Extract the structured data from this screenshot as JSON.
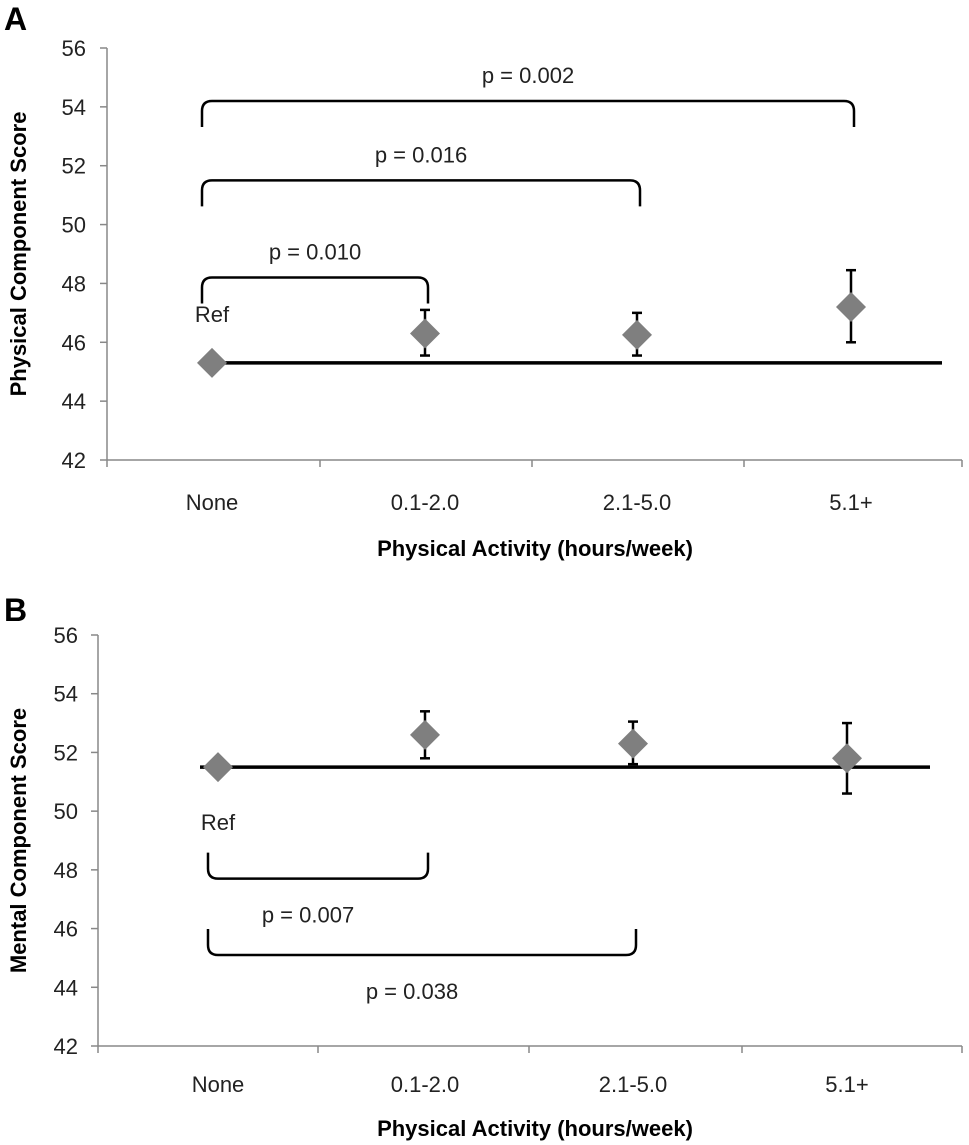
{
  "chart_data": [
    {
      "type": "scatter",
      "panel_label": "A",
      "categories": [
        "None",
        "0.1-2.0",
        "2.1-5.0",
        "5.1+"
      ],
      "series": [
        {
          "values": [
            45.3,
            46.3,
            46.25,
            47.2
          ],
          "error_low": [
            null,
            45.55,
            45.55,
            46.0
          ],
          "error_high": [
            null,
            47.1,
            47.0,
            48.45
          ]
        }
      ],
      "reference_line": 45.3,
      "ref_label": "Ref",
      "xlabel": "Physical Activity (hours/week)",
      "ylabel": "Physical Component Score",
      "ylim": [
        42,
        56
      ],
      "yticks": [
        42,
        44,
        46,
        48,
        50,
        52,
        54,
        56
      ],
      "grid": false,
      "marker_color": "#7f7f7f",
      "annotations": [
        {
          "text": "p = 0.010",
          "from": "None",
          "to": "0.1-2.0",
          "level": 48.2,
          "orientation": "above"
        },
        {
          "text": "p = 0.016",
          "from": "None",
          "to": "2.1-5.0",
          "level": 51.5,
          "orientation": "above"
        },
        {
          "text": "p = 0.002",
          "from": "None",
          "to": "5.1+",
          "level": 54.2,
          "orientation": "above"
        }
      ]
    },
    {
      "type": "scatter",
      "panel_label": "B",
      "categories": [
        "None",
        "0.1-2.0",
        "2.1-5.0",
        "5.1+"
      ],
      "series": [
        {
          "values": [
            51.5,
            52.6,
            52.3,
            51.8
          ],
          "error_low": [
            null,
            51.8,
            51.6,
            50.6
          ],
          "error_high": [
            null,
            53.4,
            53.05,
            53.0
          ]
        }
      ],
      "reference_line": 51.5,
      "ref_label": "Ref",
      "xlabel": "Physical Activity (hours/week)",
      "ylabel": "Mental Component Score",
      "ylim": [
        42,
        56
      ],
      "yticks": [
        42,
        44,
        46,
        48,
        50,
        52,
        54,
        56
      ],
      "grid": false,
      "marker_color": "#7f7f7f",
      "annotations": [
        {
          "text": "p = 0.007",
          "from": "None",
          "to": "0.1-2.0",
          "level": 47.7,
          "orientation": "below"
        },
        {
          "text": "p = 0.038",
          "from": "None",
          "to": "2.1-5.0",
          "level": 45.1,
          "orientation": "below"
        }
      ]
    }
  ]
}
